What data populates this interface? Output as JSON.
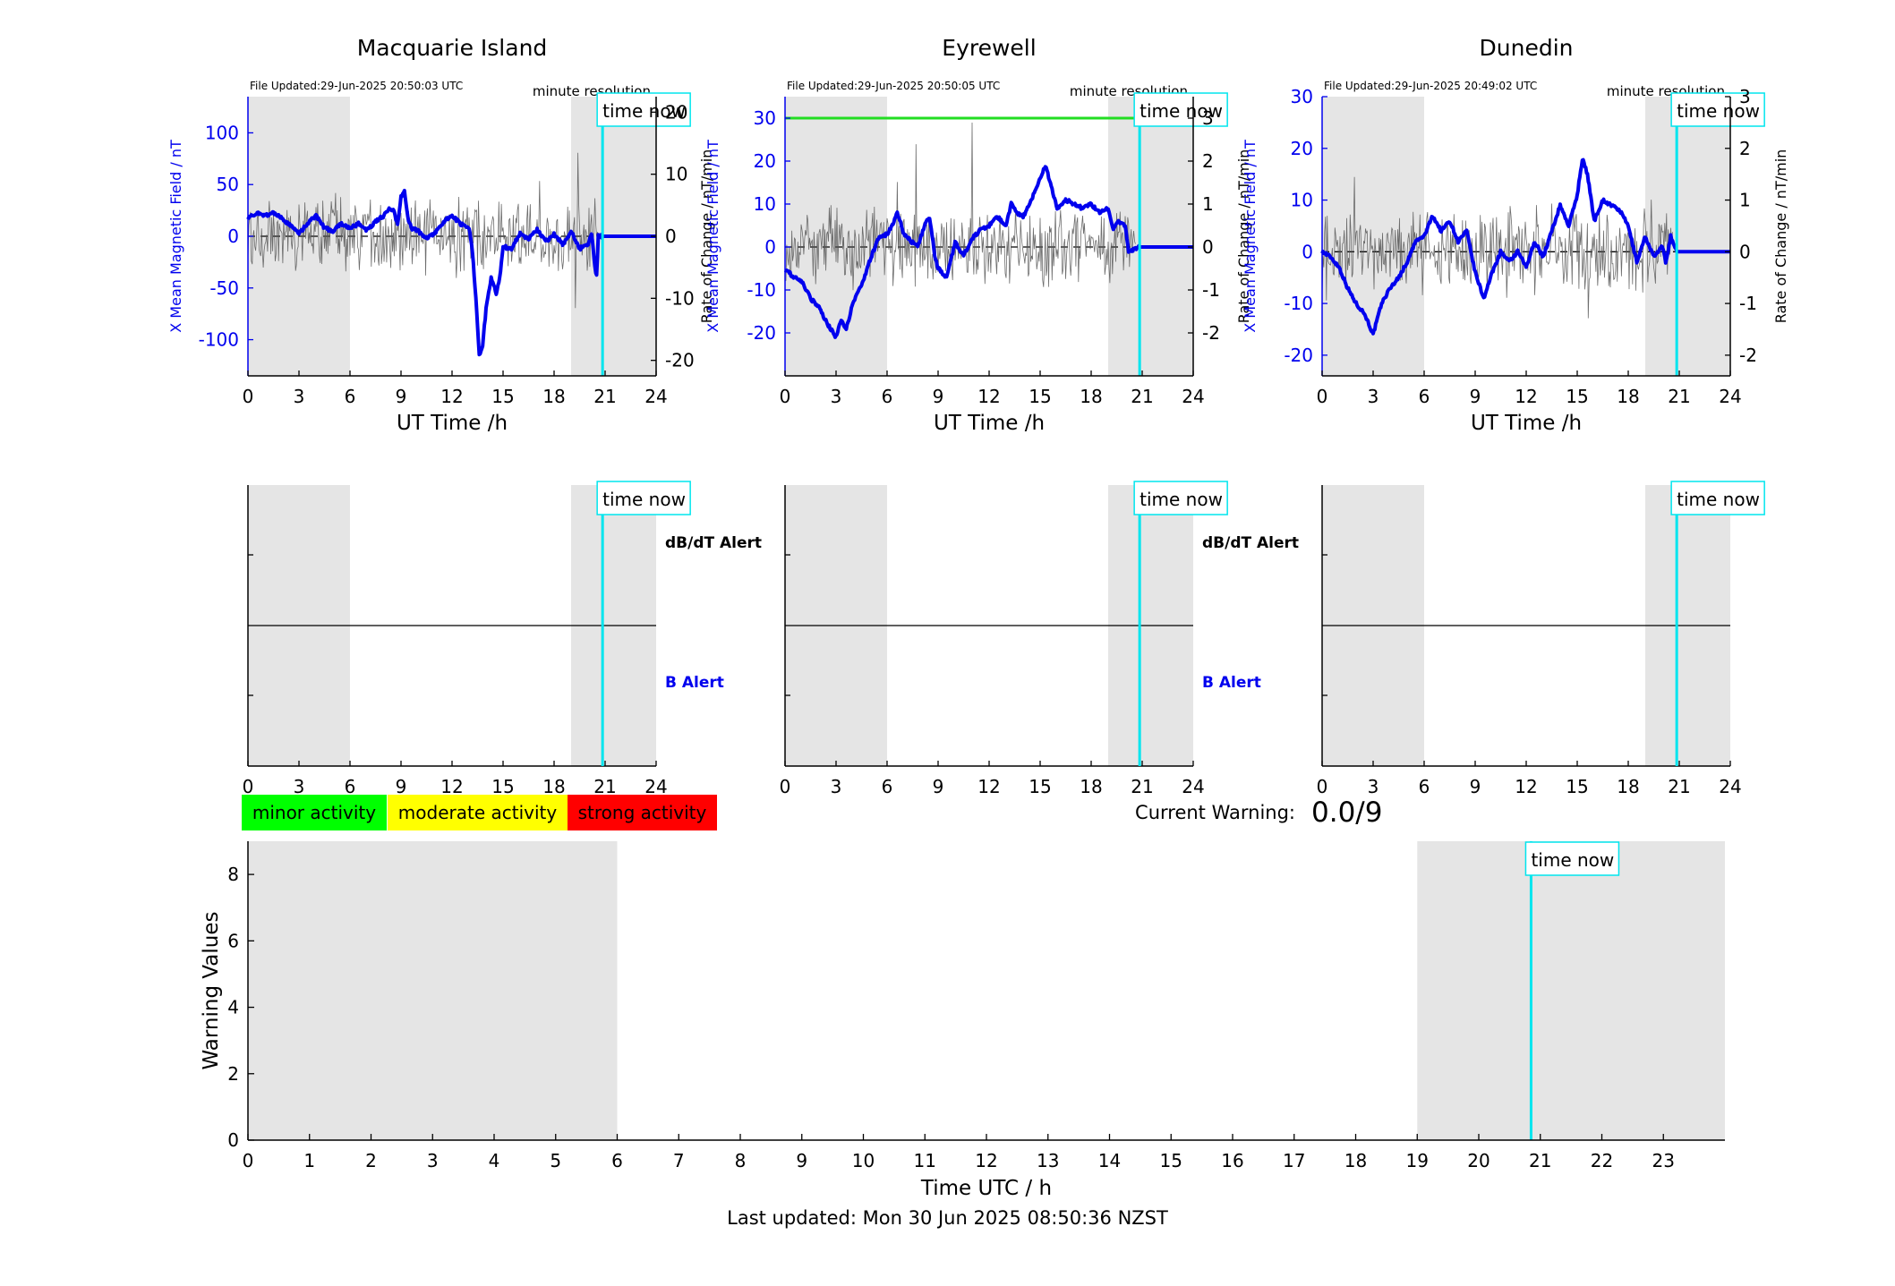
{
  "colors": {
    "field_line": "#0000ee",
    "rate_line": "#555555",
    "time_now_line": "#00e5ee",
    "shade": "#e5e5e5",
    "threshold_line": "#22dd22",
    "minor": "#00ff00",
    "moderate": "#ffff00",
    "strong": "#ff0000"
  },
  "stations": [
    {
      "name": "Macquarie Island",
      "file_updated": "File Updated:29-Jun-2025 20:50:03 UTC",
      "resolution": "minute resolution",
      "ylabel_left": "X Mean Magnetic Field / nT",
      "ylabel_right": "Rate of Change / nT/min",
      "ylim_left": [
        -135,
        135
      ],
      "ylim_right": [
        -22.5,
        22.5
      ],
      "yticks_left": [
        -100,
        -50,
        0,
        50,
        100
      ],
      "yticks_right": [
        -20,
        -10,
        0,
        10,
        20
      ],
      "threshold_left": null,
      "field_shape": [
        [
          0,
          18
        ],
        [
          0.5,
          22
        ],
        [
          1,
          20
        ],
        [
          1.5,
          23
        ],
        [
          2,
          17
        ],
        [
          2.5,
          10
        ],
        [
          3,
          3
        ],
        [
          3.5,
          12
        ],
        [
          4,
          20
        ],
        [
          4.5,
          8
        ],
        [
          5,
          5
        ],
        [
          5.5,
          12
        ],
        [
          6,
          8
        ],
        [
          6.5,
          12
        ],
        [
          7,
          6
        ],
        [
          7.5,
          14
        ],
        [
          8,
          20
        ],
        [
          8.3,
          28
        ],
        [
          8.6,
          24
        ],
        [
          8.8,
          10
        ],
        [
          9,
          38
        ],
        [
          9.2,
          45
        ],
        [
          9.4,
          18
        ],
        [
          9.6,
          8
        ],
        [
          10,
          5
        ],
        [
          10.5,
          -2
        ],
        [
          11,
          3
        ],
        [
          11.5,
          14
        ],
        [
          12,
          20
        ],
        [
          12.5,
          12
        ],
        [
          13,
          8
        ],
        [
          13.2,
          -15
        ],
        [
          13.4,
          -60
        ],
        [
          13.6,
          -115
        ],
        [
          13.8,
          -105
        ],
        [
          14,
          -70
        ],
        [
          14.3,
          -40
        ],
        [
          14.6,
          -55
        ],
        [
          14.8,
          -40
        ],
        [
          15,
          -10
        ],
        [
          15.5,
          -12
        ],
        [
          16,
          3
        ],
        [
          16.5,
          -3
        ],
        [
          17,
          7
        ],
        [
          17.5,
          -5
        ],
        [
          18,
          2
        ],
        [
          18.5,
          -8
        ],
        [
          19,
          5
        ],
        [
          19.5,
          -12
        ],
        [
          20,
          -8
        ],
        [
          20.2,
          3
        ],
        [
          20.4,
          -30
        ],
        [
          20.5,
          -38
        ],
        [
          20.6,
          0
        ],
        [
          20.85,
          0
        ],
        [
          24,
          0
        ]
      ],
      "rate_noise": 3
    },
    {
      "name": "Eyrewell",
      "file_updated": "File Updated:29-Jun-2025 20:50:05 UTC",
      "resolution": "minute resolution",
      "ylabel_left": "X Mean Magnetic Field / nT",
      "ylabel_right": "Rate of Change / nT/min",
      "ylim_left": [
        -30,
        35
      ],
      "ylim_right": [
        -3,
        3.5
      ],
      "yticks_left": [
        -20,
        -10,
        0,
        10,
        20,
        30
      ],
      "yticks_right": [
        -2,
        -1,
        0,
        1,
        2,
        3
      ],
      "threshold_left": 30,
      "field_shape": [
        [
          0,
          -5
        ],
        [
          0.5,
          -7
        ],
        [
          1,
          -8
        ],
        [
          1.5,
          -12
        ],
        [
          2,
          -14
        ],
        [
          2.5,
          -18
        ],
        [
          3,
          -21
        ],
        [
          3.3,
          -17
        ],
        [
          3.6,
          -19
        ],
        [
          4,
          -13
        ],
        [
          4.5,
          -9
        ],
        [
          5,
          -3
        ],
        [
          5.5,
          2
        ],
        [
          6,
          3
        ],
        [
          6.3,
          5
        ],
        [
          6.6,
          8
        ],
        [
          7,
          3
        ],
        [
          7.5,
          1
        ],
        [
          7.8,
          0
        ],
        [
          8.2,
          5
        ],
        [
          8.5,
          7
        ],
        [
          8.8,
          -2
        ],
        [
          9,
          -5
        ],
        [
          9.5,
          -7
        ],
        [
          10,
          1
        ],
        [
          10.5,
          -2
        ],
        [
          11,
          2
        ],
        [
          11.5,
          4
        ],
        [
          12,
          5
        ],
        [
          12.5,
          7
        ],
        [
          13,
          5
        ],
        [
          13.3,
          10
        ],
        [
          13.6,
          8
        ],
        [
          14,
          7
        ],
        [
          14.5,
          11
        ],
        [
          15,
          16
        ],
        [
          15.3,
          19
        ],
        [
          15.6,
          15
        ],
        [
          16,
          9
        ],
        [
          16.5,
          11
        ],
        [
          17,
          10
        ],
        [
          17.5,
          9
        ],
        [
          18,
          10
        ],
        [
          18.5,
          8
        ],
        [
          19,
          9
        ],
        [
          19.3,
          4
        ],
        [
          19.6,
          6
        ],
        [
          20,
          5
        ],
        [
          20.2,
          -1
        ],
        [
          20.85,
          0
        ],
        [
          24,
          0
        ]
      ],
      "rate_noise": 0.45
    },
    {
      "name": "Dunedin",
      "file_updated": "File Updated:29-Jun-2025 20:49:02 UTC",
      "resolution": "minute resolution",
      "ylabel_left": "X Mean Magnetic Field / nT",
      "ylabel_right": "Rate of Change / nT/min",
      "ylim_left": [
        -24,
        30
      ],
      "ylim_right": [
        -2.4,
        3
      ],
      "yticks_left": [
        -20,
        -10,
        0,
        10,
        20,
        30
      ],
      "yticks_right": [
        -2,
        -1,
        0,
        1,
        2,
        3
      ],
      "threshold_left": null,
      "field_shape": [
        [
          0,
          0
        ],
        [
          0.5,
          -1
        ],
        [
          1,
          -3
        ],
        [
          1.5,
          -7
        ],
        [
          2,
          -10
        ],
        [
          2.5,
          -12
        ],
        [
          3,
          -16
        ],
        [
          3.5,
          -10
        ],
        [
          4,
          -7
        ],
        [
          4.5,
          -5
        ],
        [
          5,
          -2
        ],
        [
          5.5,
          2
        ],
        [
          6,
          3
        ],
        [
          6.5,
          7
        ],
        [
          7,
          4
        ],
        [
          7.5,
          6
        ],
        [
          8,
          2
        ],
        [
          8.5,
          4
        ],
        [
          9,
          -4
        ],
        [
          9.5,
          -9
        ],
        [
          10,
          -4
        ],
        [
          10.5,
          0
        ],
        [
          11,
          -2
        ],
        [
          11.5,
          0
        ],
        [
          12,
          -3
        ],
        [
          12.5,
          2
        ],
        [
          13,
          -1
        ],
        [
          13.5,
          4
        ],
        [
          14,
          9
        ],
        [
          14.5,
          5
        ],
        [
          15,
          11
        ],
        [
          15.3,
          18
        ],
        [
          15.6,
          15
        ],
        [
          16,
          6
        ],
        [
          16.5,
          10
        ],
        [
          17,
          9
        ],
        [
          17.5,
          8
        ],
        [
          18,
          5
        ],
        [
          18.5,
          -2
        ],
        [
          19,
          3
        ],
        [
          19.5,
          -1
        ],
        [
          20,
          1
        ],
        [
          20.2,
          -2
        ],
        [
          20.5,
          3
        ],
        [
          20.85,
          0
        ],
        [
          24,
          0
        ]
      ],
      "rate_noise": 0.35
    }
  ],
  "shade_ranges": [
    [
      0,
      6
    ],
    [
      19,
      24
    ]
  ],
  "time_now_label": "time now",
  "time_now_hour": 20.85,
  "top_xlabel": "UT Time /h",
  "top_xticks": [
    0,
    3,
    6,
    9,
    12,
    15,
    18,
    21,
    24
  ],
  "alert_labels": {
    "db_dt": "dB/dT Alert",
    "b": "B Alert"
  },
  "legend": [
    {
      "label": "minor activity",
      "color_key": "minor"
    },
    {
      "label": "moderate activity",
      "color_key": "moderate"
    },
    {
      "label": "strong activity",
      "color_key": "strong"
    }
  ],
  "current_warning": {
    "label": "Current Warning:",
    "value": "0.0/9"
  },
  "chart_data": {
    "type": "line",
    "title": "",
    "xlabel": "Time UTC / h",
    "ylabel": "Warning Values",
    "xlim": [
      0,
      24
    ],
    "ylim": [
      0,
      9
    ],
    "xticks": [
      0,
      1,
      2,
      3,
      4,
      5,
      6,
      7,
      8,
      9,
      10,
      11,
      12,
      13,
      14,
      15,
      16,
      17,
      18,
      19,
      20,
      21,
      22,
      23
    ],
    "yticks": [
      0,
      2,
      4,
      6,
      8
    ],
    "values": []
  },
  "footer": "Last updated: Mon 30 Jun 2025 08:50:36 NZST"
}
